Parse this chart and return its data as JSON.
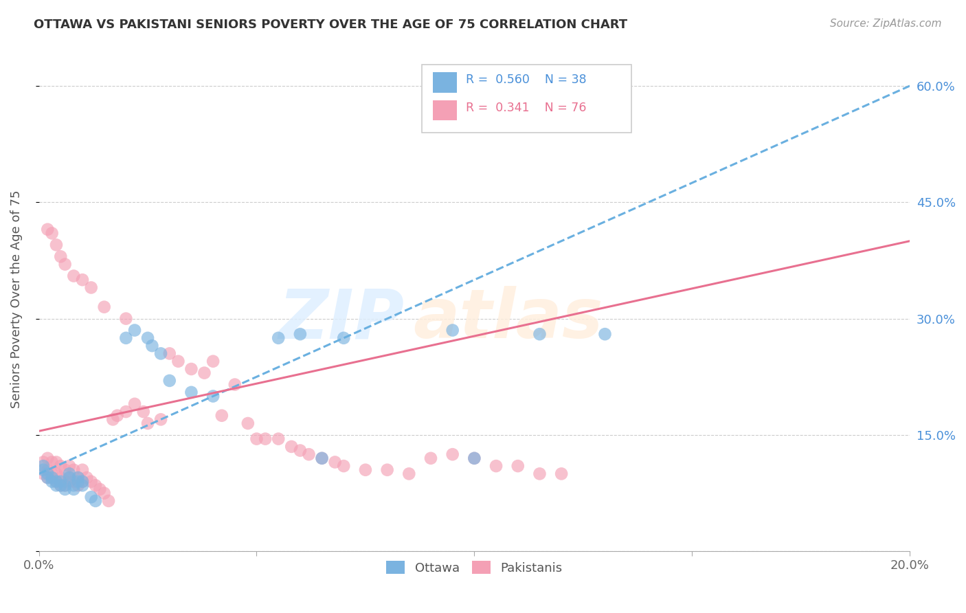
{
  "title": "OTTAWA VS PAKISTANI SENIORS POVERTY OVER THE AGE OF 75 CORRELATION CHART",
  "source": "Source: ZipAtlas.com",
  "ylabel": "Seniors Poverty Over the Age of 75",
  "xlim": [
    0.0,
    0.2
  ],
  "ylim": [
    0.0,
    0.65
  ],
  "legend_r_ottawa": "0.560",
  "legend_n_ottawa": "38",
  "legend_r_pakistani": "0.341",
  "legend_n_pakistani": "76",
  "color_ottawa": "#7ab3e0",
  "color_pakistani": "#f4a0b5",
  "color_line_ottawa": "#6ab0e0",
  "color_line_pakistani": "#e87090",
  "ottawa_x": [
    0.001,
    0.001,
    0.002,
    0.002,
    0.003,
    0.003,
    0.004,
    0.004,
    0.005,
    0.005,
    0.006,
    0.006,
    0.007,
    0.007,
    0.008,
    0.008,
    0.009,
    0.009,
    0.01,
    0.01,
    0.012,
    0.013,
    0.02,
    0.022,
    0.025,
    0.026,
    0.028,
    0.03,
    0.035,
    0.04,
    0.055,
    0.06,
    0.065,
    0.07,
    0.095,
    0.1,
    0.115,
    0.13
  ],
  "ottawa_y": [
    0.105,
    0.11,
    0.095,
    0.1,
    0.09,
    0.095,
    0.085,
    0.09,
    0.085,
    0.09,
    0.08,
    0.085,
    0.095,
    0.1,
    0.08,
    0.085,
    0.09,
    0.095,
    0.085,
    0.09,
    0.07,
    0.065,
    0.275,
    0.285,
    0.275,
    0.265,
    0.255,
    0.22,
    0.205,
    0.2,
    0.275,
    0.28,
    0.12,
    0.275,
    0.285,
    0.12,
    0.28,
    0.28
  ],
  "pakistani_x": [
    0.001,
    0.001,
    0.002,
    0.002,
    0.002,
    0.003,
    0.003,
    0.003,
    0.004,
    0.004,
    0.004,
    0.005,
    0.005,
    0.005,
    0.006,
    0.006,
    0.006,
    0.007,
    0.007,
    0.007,
    0.008,
    0.008,
    0.009,
    0.009,
    0.01,
    0.01,
    0.011,
    0.012,
    0.013,
    0.014,
    0.015,
    0.016,
    0.017,
    0.018,
    0.02,
    0.022,
    0.024,
    0.025,
    0.028,
    0.03,
    0.032,
    0.035,
    0.038,
    0.04,
    0.042,
    0.045,
    0.048,
    0.05,
    0.052,
    0.055,
    0.058,
    0.06,
    0.062,
    0.065,
    0.068,
    0.07,
    0.075,
    0.08,
    0.085,
    0.09,
    0.095,
    0.1,
    0.105,
    0.11,
    0.115,
    0.12,
    0.002,
    0.003,
    0.004,
    0.005,
    0.006,
    0.008,
    0.01,
    0.012,
    0.015,
    0.02
  ],
  "pakistani_y": [
    0.1,
    0.115,
    0.095,
    0.105,
    0.12,
    0.095,
    0.1,
    0.115,
    0.09,
    0.1,
    0.115,
    0.085,
    0.095,
    0.11,
    0.085,
    0.09,
    0.105,
    0.09,
    0.095,
    0.11,
    0.09,
    0.105,
    0.085,
    0.095,
    0.09,
    0.105,
    0.095,
    0.09,
    0.085,
    0.08,
    0.075,
    0.065,
    0.17,
    0.175,
    0.18,
    0.19,
    0.18,
    0.165,
    0.17,
    0.255,
    0.245,
    0.235,
    0.23,
    0.245,
    0.175,
    0.215,
    0.165,
    0.145,
    0.145,
    0.145,
    0.135,
    0.13,
    0.125,
    0.12,
    0.115,
    0.11,
    0.105,
    0.105,
    0.1,
    0.12,
    0.125,
    0.12,
    0.11,
    0.11,
    0.1,
    0.1,
    0.415,
    0.41,
    0.395,
    0.38,
    0.37,
    0.355,
    0.35,
    0.34,
    0.315,
    0.3
  ],
  "watermark_zip_color": "#ddeeff",
  "watermark_atlas_color": "#ffeedd"
}
